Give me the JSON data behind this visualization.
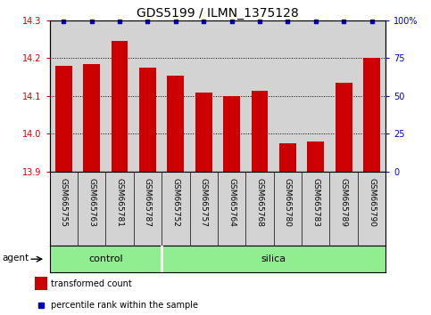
{
  "title": "GDS5199 / ILMN_1375128",
  "samples": [
    "GSM665755",
    "GSM665763",
    "GSM665781",
    "GSM665787",
    "GSM665752",
    "GSM665757",
    "GSM665764",
    "GSM665768",
    "GSM665780",
    "GSM665783",
    "GSM665789",
    "GSM665790"
  ],
  "bar_values": [
    14.18,
    14.185,
    14.245,
    14.175,
    14.155,
    14.11,
    14.1,
    14.115,
    13.975,
    13.98,
    14.135,
    14.2
  ],
  "bar_color": "#cc0000",
  "percentile_color": "#0000bb",
  "ylim_left": [
    13.9,
    14.3
  ],
  "ylim_right": [
    0,
    100
  ],
  "yticks_left": [
    13.9,
    14.0,
    14.1,
    14.2,
    14.3
  ],
  "yticks_right": [
    0,
    25,
    50,
    75,
    100
  ],
  "ytick_labels_right": [
    "0",
    "25",
    "50",
    "75",
    "100%"
  ],
  "ylabel_left_color": "#cc0000",
  "ylabel_right_color": "#0000bb",
  "n_control": 4,
  "n_silica": 8,
  "control_color": "#90ee90",
  "agent_label": "agent",
  "control_label": "control",
  "silica_label": "silica",
  "legend_bar_label": "transformed count",
  "legend_pct_label": "percentile rank within the sample",
  "bar_area_bg": "#d3d3d3",
  "title_fontsize": 10,
  "tick_fontsize": 7,
  "label_fontsize": 6.5,
  "bar_width": 0.6,
  "grid_yticks": [
    14.0,
    14.1,
    14.2
  ]
}
